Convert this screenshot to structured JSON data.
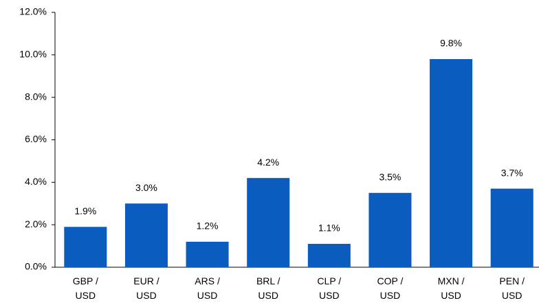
{
  "chart_data": {
    "type": "bar",
    "categories": [
      "GBP / USD",
      "EUR / USD",
      "ARS / USD",
      "BRL / USD",
      "CLP / USD",
      "COP / USD",
      "MXN / USD",
      "PEN / USD"
    ],
    "values": [
      1.9,
      3.0,
      1.2,
      4.2,
      1.1,
      3.5,
      9.8,
      3.7
    ],
    "value_labels": [
      "1.9%",
      "3.0%",
      "1.2%",
      "4.2%",
      "1.1%",
      "3.5%",
      "9.8%",
      "3.7%"
    ],
    "color": "#0b5cbf",
    "ylim": [
      0,
      12
    ],
    "yticks": [
      {
        "value": 0,
        "label": "0.0%"
      },
      {
        "value": 2,
        "label": "2.0%"
      },
      {
        "value": 4,
        "label": "4.0%"
      },
      {
        "value": 6,
        "label": "6.0%"
      },
      {
        "value": 8,
        "label": "8.0%"
      },
      {
        "value": 10,
        "label": "10.0%"
      },
      {
        "value": 12,
        "label": "12.0%"
      }
    ],
    "grid": false
  }
}
